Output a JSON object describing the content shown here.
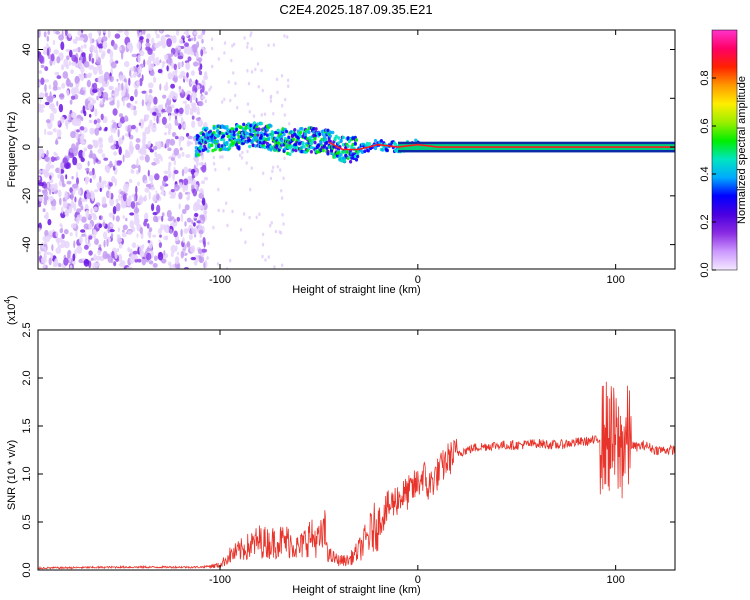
{
  "title": "C2E4.2025.187.09.35.E21",
  "chart_data": [
    {
      "type": "heatmap",
      "xlabel": "Height of straight line (km)",
      "ylabel": "Frequency (Hz)",
      "xlim": [
        -192,
        130
      ],
      "ylim": [
        -50,
        48
      ],
      "x_ticks": [
        -100,
        0,
        100
      ],
      "x_tick_labels": [
        "-100",
        "0",
        "100"
      ],
      "y_ticks": [
        -40,
        -20,
        0,
        20,
        40
      ],
      "y_tick_labels": [
        "-40",
        "-20",
        "0",
        "20",
        "40"
      ],
      "colorbar": {
        "label": "Normalized spectral amplitude",
        "range": [
          0,
          1
        ],
        "ticks": [
          0,
          0.2,
          0.4,
          0.6,
          0.8
        ],
        "tick_labels": [
          "0.0",
          "0.2",
          "0.4",
          "0.6",
          "0.8"
        ],
        "colors": [
          "#f4e8ff",
          "#cc99ff",
          "#8a2be2",
          "#4b00e0",
          "#0000ff",
          "#00aaff",
          "#00e5c0",
          "#00ee00",
          "#9bee00",
          "#ffee00",
          "#ff9900",
          "#ff2200",
          "#ff0066",
          "#ff33cc"
        ]
      },
      "signal_trace": [
        {
          "x": -110,
          "y": 3
        },
        {
          "x": -95,
          "y": 4
        },
        {
          "x": -80,
          "y": 5
        },
        {
          "x": -65,
          "y": 2
        },
        {
          "x": -55,
          "y": 3
        },
        {
          "x": -45,
          "y": 2
        },
        {
          "x": -38,
          "y": -1
        },
        {
          "x": -30,
          "y": -1
        },
        {
          "x": -20,
          "y": 1
        },
        {
          "x": -10,
          "y": 0
        },
        {
          "x": 0,
          "y": 1
        },
        {
          "x": 10,
          "y": 0
        },
        {
          "x": 130,
          "y": 0
        }
      ],
      "grid": false
    },
    {
      "type": "line",
      "xlabel": "Height of straight line (km)",
      "ylabel": "SNR (10 * v/v)",
      "y_multiplier_label": "(x10",
      "y_multiplier_exponent": "4",
      "y_multiplier_close": ")",
      "xlim": [
        -192,
        130
      ],
      "ylim": [
        0,
        2.5
      ],
      "x_ticks": [
        -100,
        0,
        100
      ],
      "x_tick_labels": [
        "-100",
        "0",
        "100"
      ],
      "y_ticks": [
        0,
        0.5,
        1,
        1.5,
        2,
        2.5
      ],
      "y_tick_labels": [
        "0.0",
        "0.5",
        "1.0",
        "1.5",
        "2.0",
        "2.5"
      ],
      "series": [
        {
          "color": "#e8332a",
          "x": [
            -192,
            -150,
            -110,
            -100,
            -95,
            -90,
            -85,
            -80,
            -75,
            -70,
            -65,
            -60,
            -55,
            -50,
            -47,
            -45,
            -40,
            -35,
            -30,
            -25,
            -20,
            -15,
            -10,
            -5,
            0,
            3,
            5,
            8,
            10,
            15,
            20,
            30,
            40,
            50,
            60,
            70,
            80,
            90,
            95,
            98,
            100,
            102,
            105,
            110,
            115,
            120,
            125,
            130
          ],
          "y": [
            0.02,
            0.03,
            0.03,
            0.05,
            0.15,
            0.2,
            0.25,
            0.3,
            0.28,
            0.3,
            0.3,
            0.22,
            0.35,
            0.3,
            0.4,
            0.15,
            0.1,
            0.1,
            0.2,
            0.35,
            0.5,
            0.65,
            0.75,
            0.8,
            0.9,
            1.0,
            0.85,
            0.95,
            1.0,
            1.15,
            1.22,
            1.28,
            1.3,
            1.3,
            1.32,
            1.3,
            1.33,
            1.35,
            1.4,
            1.35,
            1.3,
            1.25,
            1.35,
            1.28,
            1.3,
            1.25,
            1.25,
            1.25
          ]
        }
      ],
      "grid": false
    }
  ]
}
